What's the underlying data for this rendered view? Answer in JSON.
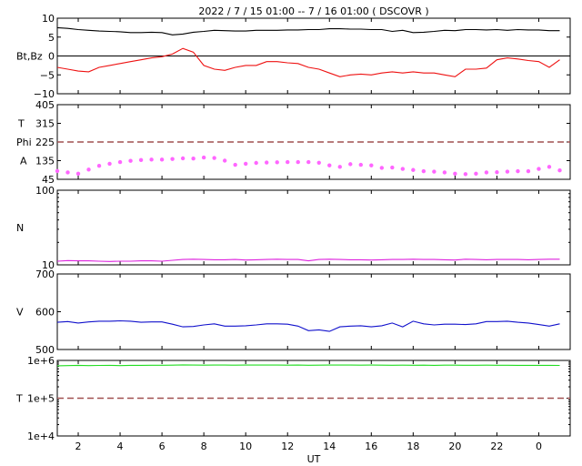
{
  "title": "2022 /  7 / 15   01:00 --  7 / 16   01:00 ( DSCOVR )",
  "x_axis": {
    "label": "UT",
    "ticks": [
      2,
      4,
      6,
      8,
      10,
      12,
      14,
      16,
      18,
      20,
      22,
      0
    ],
    "tick_labels": [
      "2",
      "4",
      "6",
      "8",
      "10",
      "12",
      "14",
      "16",
      "18",
      "20",
      "22",
      "0"
    ]
  },
  "colors": {
    "bt": "#000000",
    "bz": "#ee1111",
    "phi": "#ff66ff",
    "phi_grey": "#aaaaaa",
    "phi_blue": "#66bbff",
    "n": "#dd22dd",
    "v": "#1111cc",
    "t": "#22dd22",
    "ref_line": "#a05050"
  },
  "chart_data": [
    {
      "type": "line",
      "panel": "magnetic-field",
      "ylabel": "Bt,Bz",
      "ylim": [
        -10,
        10
      ],
      "yticks": [
        10,
        5,
        0,
        -5,
        -10
      ],
      "ytick_labels": [
        "10",
        "5",
        "0",
        "−5",
        "−10"
      ],
      "reference_lines": [
        0
      ],
      "x": [
        1,
        1.5,
        2,
        2.5,
        3,
        3.5,
        4,
        4.5,
        5,
        5.5,
        6,
        6.5,
        7,
        7.5,
        8,
        8.5,
        9,
        9.5,
        10,
        10.5,
        11,
        11.5,
        12,
        12.5,
        13,
        13.5,
        14,
        14.5,
        15,
        15.5,
        16,
        16.5,
        17,
        17.5,
        18,
        18.5,
        19,
        19.5,
        20,
        20.5,
        21,
        21.5,
        22,
        22.5,
        23,
        23.5,
        24,
        24.5,
        25
      ],
      "series": [
        {
          "name": "Bt",
          "values": [
            7.5,
            7.3,
            7,
            6.8,
            6.6,
            6.5,
            6.4,
            6.2,
            6.2,
            6.3,
            6.2,
            5.6,
            5.8,
            6.3,
            6.5,
            6.8,
            6.7,
            6.6,
            6.6,
            6.8,
            6.8,
            6.8,
            6.9,
            6.9,
            7,
            7,
            7.2,
            7.2,
            7.1,
            7.1,
            7,
            7,
            6.5,
            6.8,
            6.2,
            6.3,
            6.5,
            6.8,
            6.7,
            7,
            7,
            6.9,
            7,
            6.8,
            7,
            6.9,
            6.9,
            6.7,
            6.7
          ]
        },
        {
          "name": "Bz",
          "values": [
            -3,
            -3.5,
            -4,
            -4.2,
            -3,
            -2.5,
            -2,
            -1.5,
            -1,
            -0.5,
            -0.2,
            0.5,
            2,
            1,
            -2.5,
            -3.5,
            -3.8,
            -3,
            -2.5,
            -2.5,
            -1.5,
            -1.5,
            -1.8,
            -2,
            -3,
            -3.5,
            -4.5,
            -5.5,
            -5,
            -4.8,
            -5,
            -4.5,
            -4.2,
            -4.5,
            -4.2,
            -4.5,
            -4.5,
            -5,
            -5.5,
            -3.5,
            -3.5,
            -3.2,
            -1,
            -0.5,
            -0.8,
            -1.2,
            -1.5,
            -3,
            -1
          ]
        }
      ]
    },
    {
      "type": "scatter",
      "panel": "phi-angle",
      "ylabel": "T\nPhi\nA",
      "ylim": [
        45,
        405
      ],
      "yticks": [
        405,
        315,
        225,
        135,
        45
      ],
      "ytick_labels": [
        "405",
        "315",
        "225",
        "135",
        "45"
      ],
      "reference_lines": [
        225
      ],
      "x": [
        1,
        1.5,
        2,
        2.5,
        3,
        3.5,
        4,
        4.5,
        5,
        5.5,
        6,
        6.5,
        7,
        7.5,
        8,
        8.5,
        9,
        9.5,
        10,
        10.5,
        11,
        11.5,
        12,
        12.5,
        13,
        13.5,
        14,
        14.5,
        15,
        15.5,
        16,
        16.5,
        17,
        17.5,
        18,
        18.5,
        19,
        19.5,
        20,
        20.5,
        21,
        21.5,
        22,
        22.5,
        23,
        23.5,
        24,
        24.5,
        25
      ],
      "series": [
        {
          "name": "Phi",
          "values": [
            85,
            78,
            72,
            92,
            110,
            120,
            128,
            134,
            138,
            140,
            140,
            143,
            146,
            145,
            150,
            148,
            135,
            115,
            120,
            124,
            126,
            127,
            128,
            128,
            128,
            125,
            112,
            105,
            118,
            115,
            112,
            100,
            102,
            95,
            90,
            84,
            82,
            78,
            72,
            70,
            72,
            78,
            79,
            82,
            84,
            84,
            95,
            105,
            88
          ]
        }
      ]
    },
    {
      "type": "line",
      "panel": "density",
      "ylabel": "N",
      "ylim": [
        10,
        100
      ],
      "log_scale": true,
      "yticks": [
        100,
        10
      ],
      "ytick_labels": [
        "100",
        "10"
      ],
      "x": [
        1,
        1.5,
        2,
        2.5,
        3,
        3.5,
        4,
        4.5,
        5,
        5.5,
        6,
        6.5,
        7,
        7.5,
        8,
        8.5,
        9,
        9.5,
        10,
        10.5,
        11,
        11.5,
        12,
        12.5,
        13,
        13.5,
        14,
        14.5,
        15,
        15.5,
        16,
        16.5,
        17,
        17.5,
        18,
        18.5,
        19,
        19.5,
        20,
        20.5,
        21,
        21.5,
        22,
        22.5,
        23,
        23.5,
        24,
        24.5,
        25
      ],
      "series": [
        {
          "name": "N",
          "values": [
            11.2,
            11.4,
            11.3,
            11.3,
            11.2,
            11.1,
            11.2,
            11.2,
            11.3,
            11.3,
            11.2,
            11.5,
            11.8,
            11.9,
            11.8,
            11.7,
            11.7,
            11.8,
            11.6,
            11.7,
            11.8,
            11.9,
            11.8,
            11.8,
            11.3,
            11.8,
            11.9,
            11.8,
            11.7,
            11.7,
            11.6,
            11.7,
            11.8,
            11.8,
            11.9,
            11.8,
            11.8,
            11.7,
            11.6,
            11.9,
            11.8,
            11.7,
            11.8,
            11.8,
            11.8,
            11.7,
            11.8,
            11.9,
            11.9
          ]
        }
      ]
    },
    {
      "type": "line",
      "panel": "velocity",
      "ylabel": "V",
      "ylim": [
        500,
        700
      ],
      "yticks": [
        700,
        600,
        500
      ],
      "ytick_labels": [
        "700",
        "600",
        "500"
      ],
      "x": [
        1,
        1.5,
        2,
        2.5,
        3,
        3.5,
        4,
        4.5,
        5,
        5.5,
        6,
        6.5,
        7,
        7.5,
        8,
        8.5,
        9,
        9.5,
        10,
        10.5,
        11,
        11.5,
        12,
        12.5,
        13,
        13.5,
        14,
        14.5,
        15,
        15.5,
        16,
        16.5,
        17,
        17.5,
        18,
        18.5,
        19,
        19.5,
        20,
        20.5,
        21,
        21.5,
        22,
        22.5,
        23,
        23.5,
        24,
        24.5,
        25
      ],
      "series": [
        {
          "name": "V",
          "values": [
            572,
            574,
            570,
            573,
            575,
            575,
            576,
            575,
            572,
            573,
            573,
            567,
            560,
            561,
            565,
            568,
            562,
            562,
            563,
            565,
            568,
            568,
            567,
            562,
            550,
            552,
            548,
            560,
            562,
            563,
            560,
            563,
            570,
            560,
            575,
            568,
            565,
            567,
            567,
            566,
            568,
            574,
            574,
            575,
            572,
            570,
            566,
            562,
            568
          ]
        }
      ]
    },
    {
      "type": "line",
      "panel": "temperature",
      "ylabel": "T",
      "ylim": [
        10000,
        1000000
      ],
      "log_scale": true,
      "yticks": [
        1000000,
        100000,
        10000
      ],
      "ytick_labels": [
        "1e+6",
        "1e+5",
        "1e+4"
      ],
      "reference_lines": [
        100000
      ],
      "x": [
        1,
        1.5,
        2,
        2.5,
        3,
        3.5,
        4,
        4.5,
        5,
        5.5,
        6,
        6.5,
        7,
        7.5,
        8,
        8.5,
        9,
        9.5,
        10,
        10.5,
        11,
        11.5,
        12,
        12.5,
        13,
        13.5,
        14,
        14.5,
        15,
        15.5,
        16,
        16.5,
        17,
        17.5,
        18,
        18.5,
        19,
        19.5,
        20,
        20.5,
        21,
        21.5,
        22,
        22.5,
        23,
        23.5,
        24,
        24.5,
        25
      ],
      "series": [
        {
          "name": "T",
          "values": [
            720000,
            730000,
            740000,
            730000,
            735000,
            740000,
            730000,
            740000,
            740000,
            745000,
            745000,
            750000,
            760000,
            755000,
            750000,
            755000,
            752000,
            750000,
            752000,
            755000,
            752000,
            752000,
            750000,
            752000,
            745000,
            750000,
            752000,
            755000,
            752000,
            750000,
            752000,
            750000,
            745000,
            748000,
            745000,
            750000,
            740000,
            748000,
            748000,
            745000,
            745000,
            748000,
            745000,
            745000,
            742000,
            740000,
            742000,
            740000,
            738000
          ]
        }
      ]
    }
  ]
}
